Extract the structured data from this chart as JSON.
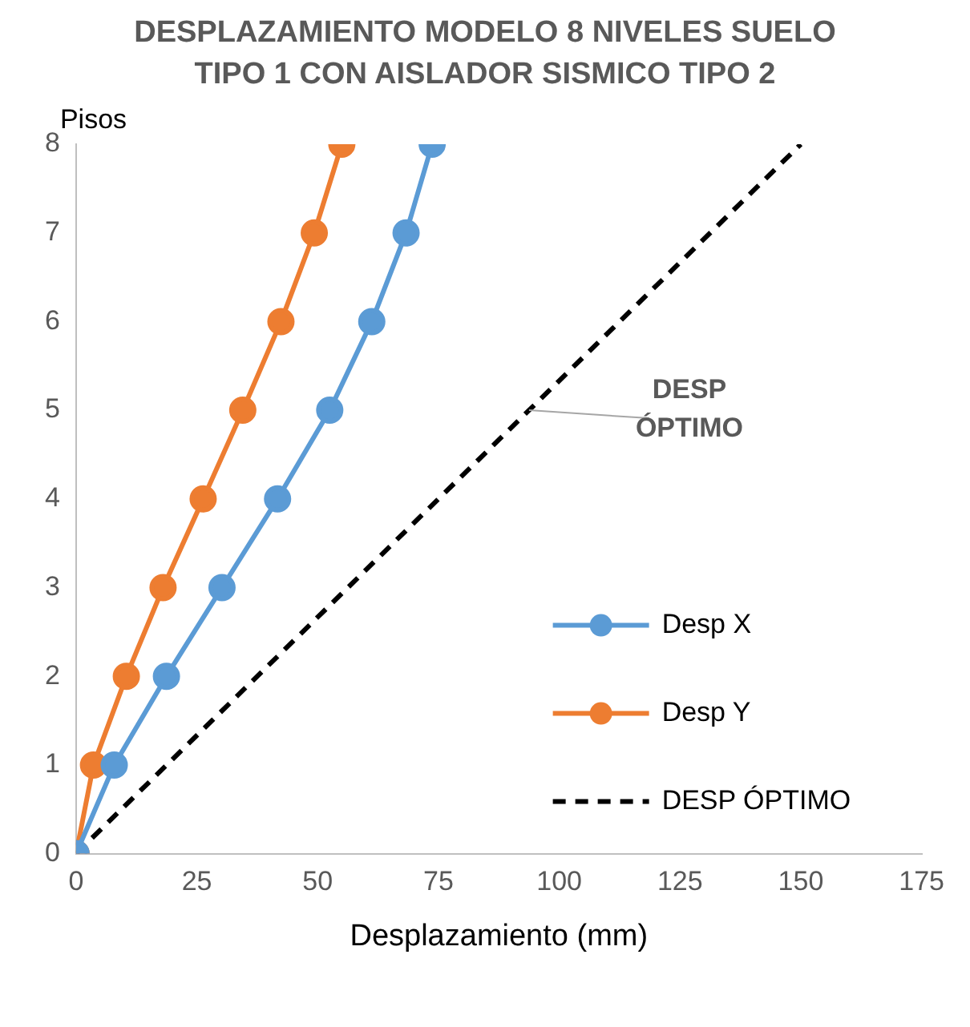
{
  "chart_data": {
    "type": "line",
    "title": "DESPLAZAMIENTO MODELO 8 NIVELES SUELO TIPO 1 CON AISLADOR SISMICO TIPO 2",
    "xlabel": "Desplazamiento (mm)",
    "ylabel": "Pisos",
    "xlim": [
      0,
      175
    ],
    "xticks": [
      0,
      25,
      50,
      75,
      100,
      125,
      150,
      175
    ],
    "ylim": [
      0,
      8
    ],
    "yticks": [
      0,
      1,
      2,
      3,
      4,
      5,
      6,
      7,
      8
    ],
    "grid": false,
    "legend": "bottom right",
    "marker": "circle",
    "line_style": "solid",
    "series": [
      {
        "name": "Desp X",
        "color": "#5b9bd5",
        "x": [
          0,
          7.9,
          18.7,
          30.2,
          41.7,
          52.5,
          61.2,
          68.3,
          73.7
        ],
        "values": [
          0,
          1,
          2,
          3,
          4,
          5,
          6,
          7,
          8
        ]
      },
      {
        "name": "Desp Y",
        "color": "#ed7d31",
        "x": [
          0,
          3.6,
          10.4,
          18,
          26.3,
          34.5,
          42.4,
          49.3,
          55
        ],
        "values": [
          0,
          1,
          2,
          3,
          4,
          5,
          6,
          7,
          8
        ]
      },
      {
        "name": "DESP ÓPTIMO",
        "color": "#000000",
        "type": "line",
        "marker": "none",
        "line_style": "dashed",
        "x": [
          0,
          150
        ],
        "values": [
          0,
          8
        ]
      }
    ],
    "annotations": [
      {
        "text": "DESP ÓPTIMO",
        "x": 93.75,
        "y": 5
      }
    ]
  }
}
